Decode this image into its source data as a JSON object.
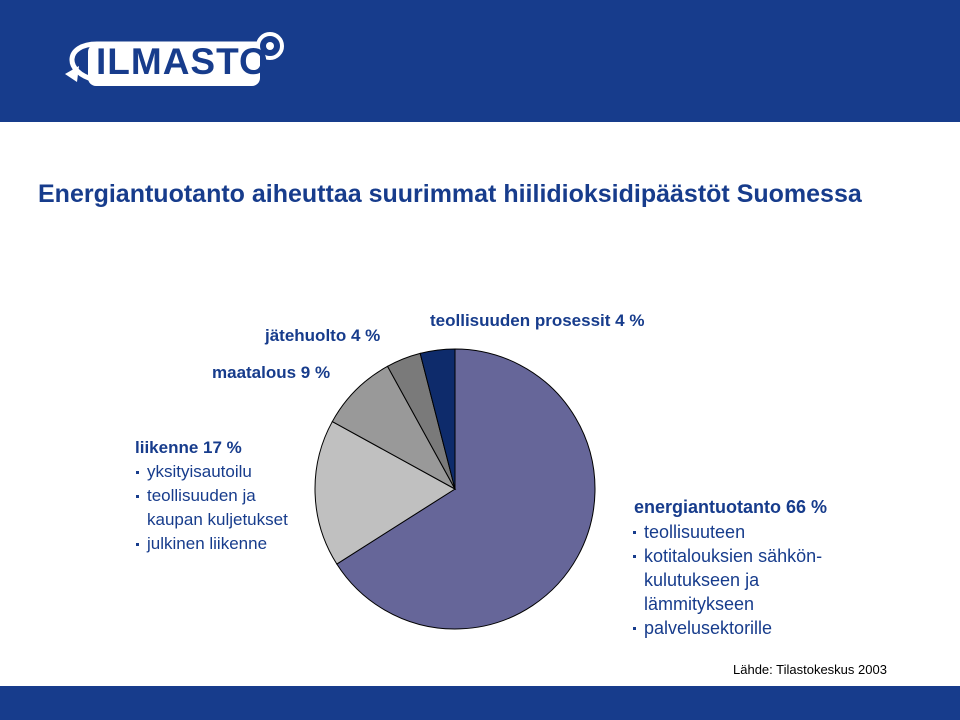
{
  "logo": {
    "text": "ILMASTO"
  },
  "title": "Energiantuotanto aiheuttaa suurimmat hiilidioksidipäästöt Suomessa",
  "colors": {
    "header": "#173c8c",
    "text": "#173c8c",
    "energy": "#666699",
    "transport": "#c0c0c0",
    "agriculture": "#999999",
    "waste": "#7a7a7a",
    "industry_process": "#0e2b6b"
  },
  "labels": {
    "waste": "jätehuolto 4 %",
    "industry_process": "teollisuuden prosessit 4 %",
    "agriculture": "maatalous 9 %",
    "transport": {
      "heading": "liikenne 17 %",
      "items": [
        "yksityisautoilu",
        "teollisuuden ja",
        "kaupan kuljetukset",
        "julkinen liikenne"
      ]
    },
    "energy": {
      "heading": "energiantuotanto 66 %",
      "items": [
        "teollisuuteen",
        "kotitalouksien sähkön-",
        "kulutukseen ja",
        "lämmitykseen",
        "palvelusektorille"
      ]
    }
  },
  "source": "Lähde: Tilastokeskus 2003",
  "chart_data": {
    "type": "pie",
    "slices": [
      {
        "label": "energiantuotanto",
        "value": 66
      },
      {
        "label": "liikenne",
        "value": 17
      },
      {
        "label": "maatalous",
        "value": 9
      },
      {
        "label": "jätehuolto",
        "value": 4
      },
      {
        "label": "teollisuuden prosessit",
        "value": 4
      }
    ]
  }
}
